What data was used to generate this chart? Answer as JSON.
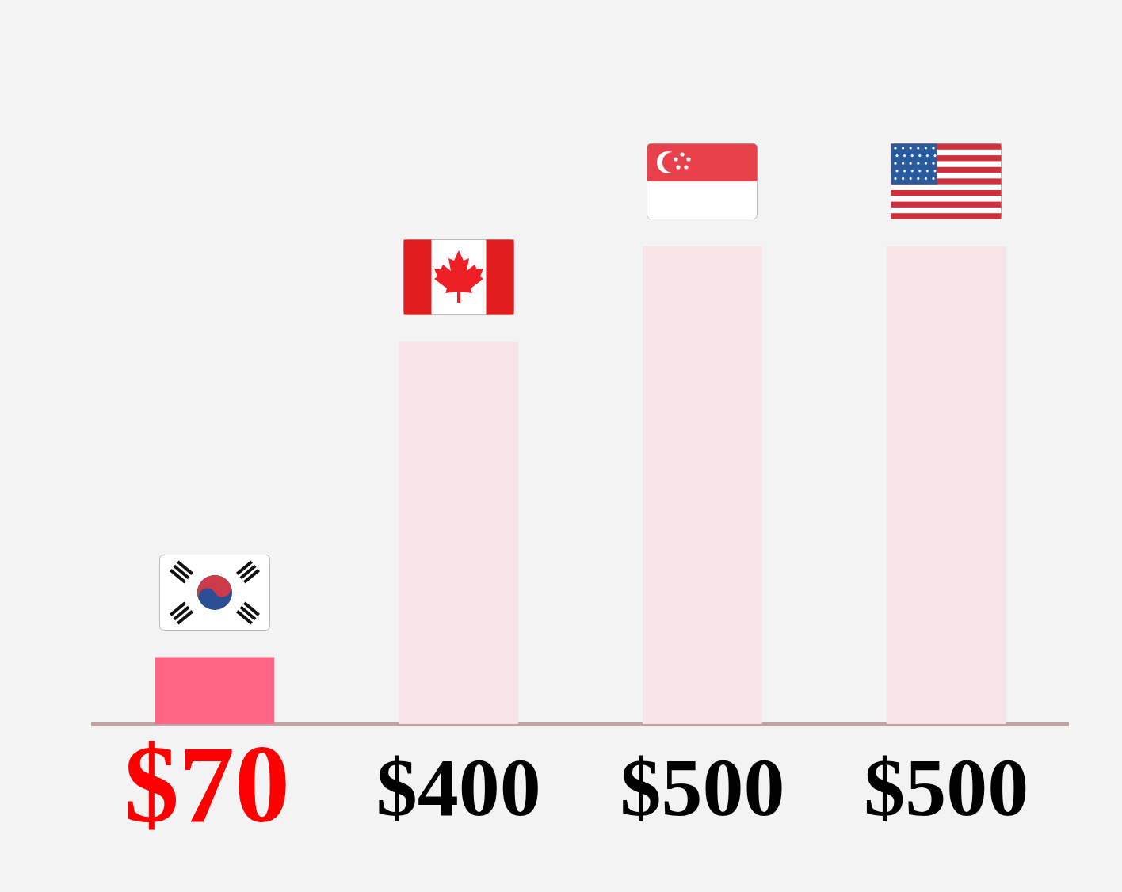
{
  "chart_data": {
    "type": "bar",
    "categories": [
      null,
      null,
      null,
      null
    ],
    "values": [
      70,
      400,
      500,
      500
    ],
    "colors": [
      "#ff6584",
      "#f7e4e8",
      "#f7e4e8",
      "#f7e4e8"
    ],
    "value_labels": [
      "$70",
      "$400",
      "$500",
      "$500"
    ]
  }
}
